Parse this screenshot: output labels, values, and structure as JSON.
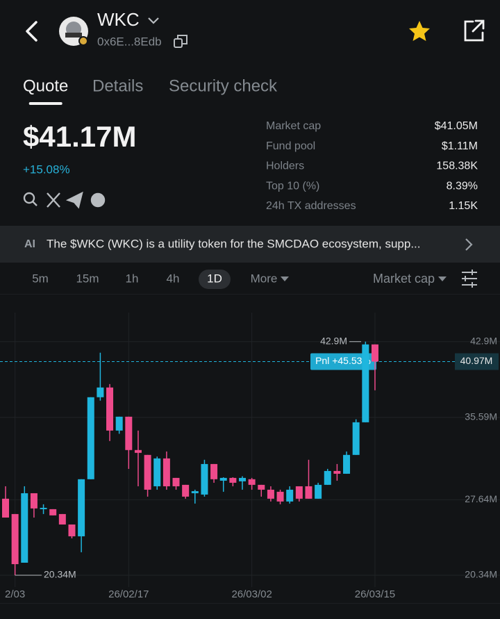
{
  "header": {
    "name": "WKC",
    "address": "0x6E...8Edb"
  },
  "tabs": [
    "Quote",
    "Details",
    "Security check"
  ],
  "active_tab": 0,
  "price": "$41.17M",
  "change": "+15.08%",
  "stats": [
    {
      "label": "Market cap",
      "value": "$41.05M"
    },
    {
      "label": "Fund pool",
      "value": "$1.11M"
    },
    {
      "label": "Holders",
      "value": "158.38K"
    },
    {
      "label": "Top 10 (%)",
      "value": "8.39%"
    },
    {
      "label": "24h TX addresses",
      "value": "1.15K"
    }
  ],
  "ai_summary": {
    "badge": "AI",
    "text": "The $WKC (WKC) is a utility token for the SMCDAO ecosystem, supp..."
  },
  "intervals": [
    "5m",
    "15m",
    "1h",
    "4h",
    "1D",
    "More"
  ],
  "active_interval": 4,
  "metric": "Market cap",
  "chart_data": {
    "type": "candlestick",
    "categories": [
      null,
      "2/03",
      null,
      null,
      null,
      null,
      null,
      null,
      null,
      null,
      null,
      null,
      null,
      "26/02/17",
      null,
      null,
      null,
      null,
      null,
      null,
      null,
      null,
      null,
      null,
      null,
      null,
      "26/03/02",
      null,
      null,
      null,
      null,
      null,
      null,
      null,
      null,
      null,
      null,
      null,
      null,
      "26/03/15"
    ],
    "open": [
      27.73,
      26.25,
      21.55,
      28.26,
      26.72,
      26.72,
      26.25,
      25.24,
      24.1,
      29.61,
      37.53,
      38.47,
      34.31,
      35.65,
      32.43,
      31.96,
      28.93,
      31.62,
      29.74,
      29.07,
      28.26,
      28.13,
      31.08,
      29.47,
      29.74,
      29.41,
      29.61,
      29.07,
      28.6,
      28.4,
      27.46,
      28.93,
      28.93,
      27.73,
      29.07,
      30.41,
      30.14,
      31.96,
      35.11,
      42.63
    ],
    "high": [
      28.93,
      26.25,
      28.93,
      28.26,
      27.19,
      26.72,
      26.25,
      25.24,
      29.61,
      37.53,
      41.83,
      38.8,
      35.65,
      35.65,
      34.31,
      31.96,
      31.8,
      32.29,
      29.74,
      29.07,
      28.6,
      31.49,
      31.08,
      29.8,
      29.8,
      29.9,
      29.74,
      29.07,
      28.93,
      28.6,
      28.93,
      28.93,
      31.49,
      29.27,
      30.61,
      31.08,
      32.29,
      35.4,
      42.9,
      42.63
    ],
    "low": [
      25.91,
      20.34,
      21.55,
      25.91,
      26.25,
      26.12,
      25.24,
      23.9,
      22.56,
      29.61,
      37.2,
      33.3,
      34.0,
      30.61,
      28.93,
      27.93,
      28.6,
      28.6,
      28.6,
      27.73,
      27.26,
      27.93,
      29.27,
      28.4,
      28.93,
      28.6,
      28.6,
      27.93,
      27.46,
      27.19,
      27.26,
      27.46,
      27.73,
      27.73,
      29.07,
      29.47,
      30.14,
      31.96,
      35.11,
      38.2
    ],
    "close": [
      25.91,
      21.41,
      28.26,
      26.79,
      26.85,
      26.12,
      25.24,
      24.1,
      29.61,
      37.53,
      38.47,
      34.31,
      35.65,
      32.43,
      32.16,
      28.6,
      31.62,
      28.93,
      28.93,
      27.93,
      28.46,
      31.08,
      29.61,
      29.74,
      29.27,
      29.74,
      29.07,
      28.6,
      27.73,
      27.46,
      28.6,
      27.73,
      27.73,
      29.07,
      30.41,
      30.14,
      31.96,
      35.11,
      42.63,
      40.97
    ],
    "up_color": "#1fb6de",
    "down_color": "#ee4a8b",
    "ylim": [
      19.2,
      45.7
    ],
    "yticks": [
      {
        "value": 20.34,
        "label": "20.34M"
      },
      {
        "value": 27.64,
        "label": "27.64M"
      },
      {
        "value": 35.59,
        "label": "35.59M"
      },
      {
        "value": 42.9,
        "label": "42.9M"
      }
    ],
    "grid": true,
    "current": {
      "value": 40.97,
      "label": "40.97M"
    },
    "pnl_label": "Pnl +45.53%",
    "high_label": {
      "value": 42.9,
      "label": "42.9M"
    },
    "low_label": {
      "value": 20.34,
      "label": "20.34M"
    }
  }
}
